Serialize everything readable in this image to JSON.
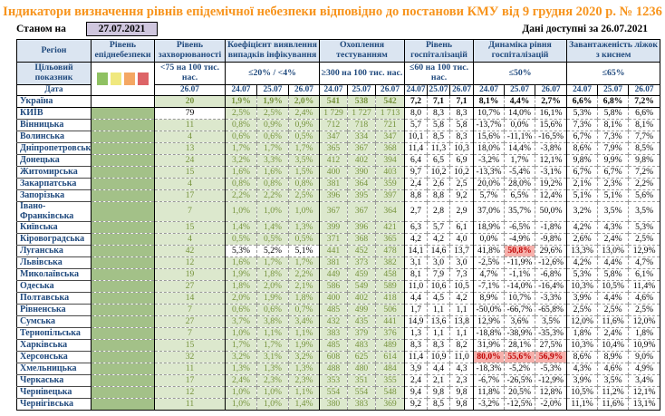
{
  "title": "Індикатори визначення рівнів епідемічної небезпеки відповідно до постанови КМУ від 9 грудня 2020 р. № 1236",
  "as_of": {
    "label": "Станом на",
    "date": "27.07.2021"
  },
  "data_available": "Дані доступні за 26.07.2021",
  "header": {
    "region_label": "Регіон",
    "target_label": "Цільовий показник",
    "date_label": "Дата",
    "groups": [
      {
        "id": "danger",
        "label": "Рівень епіднебезпеки",
        "legend": true
      },
      {
        "id": "incidence",
        "label": "Рівень захворюваності",
        "target": "<75 на 100 тис. нас.",
        "dates": [
          "26.07"
        ]
      },
      {
        "id": "coef",
        "label": "Коефіцієнт виявлення випадків інфікування",
        "target": "≤20% / <4%",
        "dates": [
          "24.07",
          "25.07",
          "26.07"
        ]
      },
      {
        "id": "testing",
        "label": "Охоплення тестуванням",
        "target": "≥300 на 100 тис. нас.",
        "dates": [
          "24.07",
          "25.07",
          "26.07"
        ]
      },
      {
        "id": "hosp",
        "label": "Рівень госпіталізацій",
        "target": "≤60 на 100 тис. нас.",
        "dates": [
          "24.07",
          "25.07",
          "26.07"
        ]
      },
      {
        "id": "dynamics",
        "label": "Динаміка рівня госпіталізацій",
        "target": "≤50%",
        "dates": [
          "24.07",
          "25.07",
          "26.07"
        ]
      },
      {
        "id": "beds",
        "label": "Завантаженість ліжок з киснем",
        "target": "≤65%",
        "dates": [
          "24.07",
          "25.07",
          "26.07"
        ]
      }
    ]
  },
  "legend_colors": {
    "green": "#8FC162",
    "yellow": "#F0E87E",
    "orange": "#F4A763",
    "red": "#DD6467"
  },
  "colors": {
    "title_orange": "#F7941D",
    "header_blue_bg": "#DBE5F1",
    "navy_text": "#1F497D",
    "cell_green_bg": "#DCE8CD",
    "cell_green_text": "#76933C",
    "danger_green": "#A3C188",
    "alert_pink_bg": "#F5B1AC",
    "alert_red_text": "#C00000",
    "asof_purple_bg": "#CFC6DE"
  },
  "rows": [
    {
      "region": "Україна",
      "bold": true,
      "danger": false,
      "inc": "20",
      "coef": [
        "1,9%",
        "1,9%",
        "2,0%"
      ],
      "test": [
        "541",
        "538",
        "542"
      ],
      "hosp": [
        "7,2",
        "7,1",
        "7,1"
      ],
      "dyn": [
        "8,1%",
        "4,4%",
        "2,7%"
      ],
      "beds": [
        "6,6%",
        "6,8%",
        "7,2%"
      ]
    },
    {
      "region": "КИЇВ",
      "danger": true,
      "inc": "79",
      "inc_plain": true,
      "coef": [
        "2,5%",
        "2,5%",
        "2,4%"
      ],
      "test": [
        "1 729",
        "1 727",
        "1 713"
      ],
      "hosp": [
        "8,0",
        "8,3",
        "8,3"
      ],
      "dyn": [
        "10,7%",
        "14,0%",
        "16,1%"
      ],
      "beds": [
        "5,3%",
        "5,8%",
        "6,6%"
      ]
    },
    {
      "region": "Вінницька",
      "danger": true,
      "inc": "11",
      "coef": [
        "0,8%",
        "0,9%",
        "0,9%"
      ],
      "test": [
        "712",
        "718",
        "721"
      ],
      "hosp": [
        "5,7",
        "5,8",
        "5,8"
      ],
      "dyn": [
        "-13,7%",
        "0,0%",
        "15,6%"
      ],
      "beds": [
        "7,3%",
        "8,1%",
        "8,1%"
      ]
    },
    {
      "region": "Волинська",
      "danger": true,
      "inc": "4",
      "coef": [
        "0,6%",
        "0,6%",
        "0,5%"
      ],
      "test": [
        "347",
        "334",
        "347"
      ],
      "hosp": [
        "10,1",
        "8,5",
        "8,3"
      ],
      "dyn": [
        "15,6%",
        "-11,1%",
        "-16,5%"
      ],
      "beds": [
        "6,7%",
        "7,3%",
        "7,7%"
      ]
    },
    {
      "region": "Дніпропетровська",
      "danger": true,
      "inc": "13",
      "coef": [
        "1,7%",
        "1,7%",
        "1,7%"
      ],
      "test": [
        "365",
        "367",
        "368"
      ],
      "hosp": [
        "11,4",
        "11,3",
        "10,3"
      ],
      "dyn": [
        "18,0%",
        "14,4%",
        "-3,8%"
      ],
      "beds": [
        "8,6%",
        "7,9%",
        "8,5%"
      ]
    },
    {
      "region": "Донецька",
      "danger": true,
      "inc": "24",
      "coef": [
        "3,2%",
        "3,3%",
        "3,5%"
      ],
      "test": [
        "412",
        "402",
        "394"
      ],
      "hosp": [
        "6,4",
        "6,5",
        "6,9"
      ],
      "dyn": [
        "-3,2%",
        "1,7%",
        "12,1%"
      ],
      "beds": [
        "9,8%",
        "9,9%",
        "9,8%"
      ]
    },
    {
      "region": "Житомирська",
      "danger": true,
      "inc": "15",
      "coef": [
        "1,6%",
        "1,6%",
        "1,5%"
      ],
      "test": [
        "400",
        "390",
        "403"
      ],
      "hosp": [
        "9,7",
        "10,2",
        "10,2"
      ],
      "dyn": [
        "-13,3%",
        "-5,4%",
        "-3,1%"
      ],
      "beds": [
        "6,7%",
        "6,7%",
        "7,2%"
      ]
    },
    {
      "region": "Закарпатська",
      "danger": true,
      "inc": "4",
      "coef": [
        "0,8%",
        "0,8%",
        "0,8%"
      ],
      "test": [
        "381",
        "364",
        "359"
      ],
      "hosp": [
        "2,4",
        "2,6",
        "2,5"
      ],
      "dyn": [
        "20,0%",
        "28,0%",
        "19,2%"
      ],
      "beds": [
        "2,1%",
        "2,3%",
        "2,2%"
      ]
    },
    {
      "region": "Запорізька",
      "danger": true,
      "inc": "17",
      "coef": [
        "2,2%",
        "2,2%",
        "2,5%"
      ],
      "test": [
        "396",
        "395",
        "397"
      ],
      "hosp": [
        "8,8",
        "8,8",
        "9,2"
      ],
      "dyn": [
        "5,7%",
        "6,5%",
        "12,4%"
      ],
      "beds": [
        "5,1%",
        "5,1%",
        "5,6%"
      ]
    },
    {
      "region": "Івано-Франківська",
      "danger": true,
      "inc": "7",
      "coef": [
        "1,0%",
        "1,0%",
        "1,0%"
      ],
      "test": [
        "367",
        "367",
        "364"
      ],
      "hosp": [
        "2,7",
        "2,8",
        "2,9"
      ],
      "dyn": [
        "37,0%",
        "35,7%",
        "50,0%"
      ],
      "beds": [
        "3,2%",
        "3,5%",
        "3,5%"
      ]
    },
    {
      "region": "Київська",
      "danger": true,
      "inc": "15",
      "coef": [
        "1,4%",
        "1,4%",
        "1,3%"
      ],
      "test": [
        "399",
        "396",
        "421"
      ],
      "hosp": [
        "6,3",
        "5,7",
        "6,1"
      ],
      "dyn": [
        "18,9%",
        "-6,5%",
        "-1,8%"
      ],
      "beds": [
        "4,2%",
        "4,3%",
        "5,3%"
      ]
    },
    {
      "region": "Кіровоградська",
      "danger": true,
      "inc": "4",
      "coef": [
        "0,5%",
        "0,5%",
        "0,5%"
      ],
      "test": [
        "371",
        "368",
        "365"
      ],
      "hosp": [
        "4,2",
        "4,2",
        "4,0"
      ],
      "dyn": [
        "0,0%",
        "-4,9%",
        "-9,8%"
      ],
      "beds": [
        "2,6%",
        "2,4%",
        "2,5%"
      ]
    },
    {
      "region": "Луганська",
      "danger": true,
      "inc": "42",
      "coef": [
        "5,3%",
        "5,2%",
        "5,1%"
      ],
      "coef_plain": true,
      "test": [
        "441",
        "452",
        "478"
      ],
      "hosp": [
        "14,1",
        "14,6",
        "13,7"
      ],
      "dyn": [
        "41,8%",
        "50,8%",
        "29,6%"
      ],
      "dyn_alert": [
        1
      ],
      "beds": [
        "13,3%",
        "13,0%",
        "12,9%"
      ]
    },
    {
      "region": "Львівська",
      "danger": true,
      "inc": "12",
      "coef": [
        "1,6%",
        "1,7%",
        "1,7%"
      ],
      "test": [
        "381",
        "373",
        "382"
      ],
      "hosp": [
        "3,1",
        "3,0",
        "3,0"
      ],
      "dyn": [
        "-2,5%",
        "-11,9%",
        "-12,6%"
      ],
      "beds": [
        "4,2%",
        "4,4%",
        "4,7%"
      ]
    },
    {
      "region": "Миколаївська",
      "danger": true,
      "inc": "19",
      "coef": [
        "1,9%",
        "1,8%",
        "2,2%"
      ],
      "test": [
        "449",
        "459",
        "458"
      ],
      "hosp": [
        "8,1",
        "7,9",
        "7,3"
      ],
      "dyn": [
        "4,7%",
        "-1,1%",
        "-6,8%"
      ],
      "beds": [
        "5,3%",
        "5,8%",
        "6,1%"
      ]
    },
    {
      "region": "Одеська",
      "danger": true,
      "inc": "27",
      "coef": [
        "1,8%",
        "2,0%",
        "2,1%"
      ],
      "test": [
        "586",
        "549",
        "589"
      ],
      "hosp": [
        "11,0",
        "10,6",
        "10,5"
      ],
      "dyn": [
        "-7,1%",
        "-14,0%",
        "-16,4%"
      ],
      "beds": [
        "10,3%",
        "10,5%",
        "11,4%"
      ]
    },
    {
      "region": "Полтавська",
      "danger": true,
      "inc": "14",
      "coef": [
        "2,0%",
        "1,9%",
        "1,8%"
      ],
      "test": [
        "400",
        "402",
        "418"
      ],
      "hosp": [
        "4,4",
        "4,5",
        "4,2"
      ],
      "dyn": [
        "8,9%",
        "10,7%",
        "-3,3%"
      ],
      "beds": [
        "3,9%",
        "4,4%",
        "4,6%"
      ]
    },
    {
      "region": "Рівненська",
      "danger": true,
      "inc": "7",
      "coef": [
        "0,6%",
        "0,6%",
        "0,7%"
      ],
      "test": [
        "485",
        "499",
        "506"
      ],
      "hosp": [
        "1,7",
        "1,1",
        "1,1"
      ],
      "dyn": [
        "-50,0%",
        "-66,7%",
        "-65,8%"
      ],
      "beds": [
        "2,5%",
        "2,5%",
        "2,5%"
      ]
    },
    {
      "region": "Сумська",
      "danger": true,
      "inc": "27",
      "coef": [
        "3,7%",
        "3,8%",
        "3,4%"
      ],
      "test": [
        "432",
        "435",
        "441"
      ],
      "hosp": [
        "14,9",
        "13,6",
        "13,8"
      ],
      "dyn": [
        "12,9%",
        "3,6%",
        "3,5%"
      ],
      "beds": [
        "12,0%",
        "11,6%",
        "12,0%"
      ]
    },
    {
      "region": "Тернопільська",
      "danger": true,
      "inc": "7",
      "coef": [
        "1,0%",
        "1,1%",
        "1,1%"
      ],
      "test": [
        "383",
        "379",
        "376"
      ],
      "hosp": [
        "1,3",
        "1,1",
        "1,1"
      ],
      "dyn": [
        "-18,8%",
        "-38,9%",
        "-35,3%"
      ],
      "beds": [
        "1,8%",
        "2,4%",
        "1,8%"
      ]
    },
    {
      "region": "Харківська",
      "danger": true,
      "inc": "15",
      "coef": [
        "1,7%",
        "1,7%",
        "1,9%"
      ],
      "test": [
        "485",
        "483",
        "489"
      ],
      "hosp": [
        "8,3",
        "8,3",
        "8,2"
      ],
      "dyn": [
        "31,9%",
        "28,1%",
        "27,5%"
      ],
      "beds": [
        "10,3%",
        "10,4%",
        "10,9%"
      ]
    },
    {
      "region": "Херсонська",
      "danger": true,
      "inc": "32",
      "coef": [
        "3,2%",
        "3,1%",
        "3,2%"
      ],
      "test": [
        "608",
        "625",
        "614"
      ],
      "hosp": [
        "11,4",
        "10,9",
        "11,0"
      ],
      "dyn": [
        "80,0%",
        "55,6%",
        "56,9%"
      ],
      "dyn_alert": [
        0,
        1,
        2
      ],
      "beds": [
        "8,6%",
        "8,9%",
        "9,0%"
      ]
    },
    {
      "region": "Хмельницька",
      "danger": true,
      "inc": "11",
      "coef": [
        "1,3%",
        "1,3%",
        "1,3%"
      ],
      "test": [
        "488",
        "480",
        "484"
      ],
      "hosp": [
        "3,9",
        "4,4",
        "4,3"
      ],
      "dyn": [
        "-18,3%",
        "-5,2%",
        "-5,3%"
      ],
      "beds": [
        "4,3%",
        "4,6%",
        "4,9%"
      ]
    },
    {
      "region": "Черкаська",
      "danger": true,
      "inc": "17",
      "coef": [
        "2,4%",
        "2,3%",
        "2,3%"
      ],
      "test": [
        "353",
        "351",
        "355"
      ],
      "hosp": [
        "2,4",
        "2,1",
        "2,3"
      ],
      "dyn": [
        "-6,7%",
        "-26,5%",
        "-12,9%"
      ],
      "beds": [
        "3,9%",
        "3,5%",
        "3,4%"
      ]
    },
    {
      "region": "Чернівецька",
      "danger": true,
      "inc": "12",
      "coef": [
        "1,0%",
        "1,0%",
        "1,1%"
      ],
      "test": [
        "554",
        "554",
        "548"
      ],
      "hosp": [
        "9,4",
        "9,8",
        "9,8"
      ],
      "dyn": [
        "11,8%",
        "20,5%",
        "12,8%"
      ],
      "beds": [
        "10,5%",
        "11,2%",
        "12,1%"
      ]
    },
    {
      "region": "Чернігівська",
      "danger": true,
      "inc": "11",
      "coef": [
        "1,0%",
        "1,0%",
        "1,4%"
      ],
      "test": [
        "380",
        "383",
        "369"
      ],
      "hosp": [
        "9,2",
        "8,5",
        "9,8"
      ],
      "dyn": [
        "-3,2%",
        "-12,5%",
        "-2,0%"
      ],
      "beds": [
        "11,1%",
        "11,6%",
        "13,1%"
      ]
    }
  ]
}
